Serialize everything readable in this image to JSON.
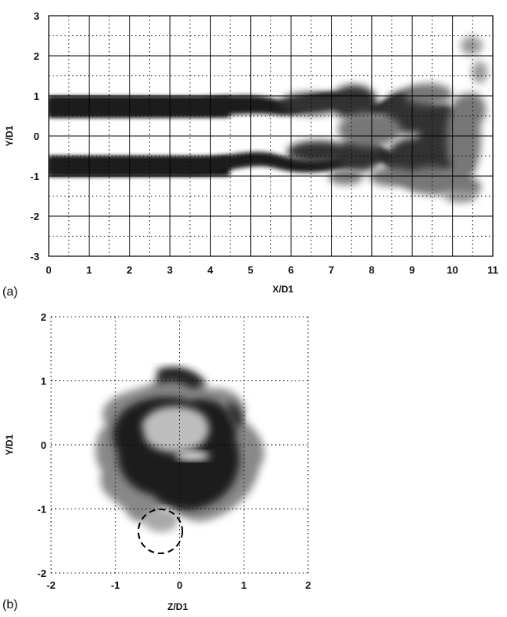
{
  "figure": {
    "panel_a_label": "(a)",
    "panel_b_label": "(b)"
  },
  "chart_data": [
    {
      "type": "heatmap",
      "panel": "(a)",
      "title": "",
      "xlabel": "X/D1",
      "ylabel": "Y/D1",
      "xlim": [
        0,
        11
      ],
      "ylim": [
        -3,
        3
      ],
      "x_ticks": [
        0,
        1,
        2,
        3,
        4,
        5,
        6,
        7,
        8,
        9,
        10,
        11
      ],
      "y_ticks": [
        -3,
        -2,
        -1,
        0,
        1,
        2,
        3
      ],
      "grid": "solid major lines every 1 unit, dotted minor lines every 0.5 unit",
      "colormap": "grayscale, black = high concentration",
      "features": {
        "jet_centers_y": [
          0.75,
          -0.75
        ],
        "laminar_until_x": 4,
        "instability_onset_x": 5,
        "breakdown_x": 9,
        "field_end_x": 10.7
      }
    },
    {
      "type": "heatmap",
      "panel": "(b)",
      "title": "",
      "xlabel": "Z/D1",
      "ylabel": "Y/D1",
      "xlim": [
        -2,
        2
      ],
      "ylim": [
        -2,
        2
      ],
      "x_ticks": [
        -2,
        -1,
        0,
        1,
        2
      ],
      "y_ticks": [
        -2,
        -1,
        0,
        1,
        2
      ],
      "grid": "dotted lines every 1 unit",
      "colormap": "grayscale, black = high concentration",
      "annotation": "dashed circle centered near (Z=-0.3, Y=-1.35)"
    }
  ]
}
